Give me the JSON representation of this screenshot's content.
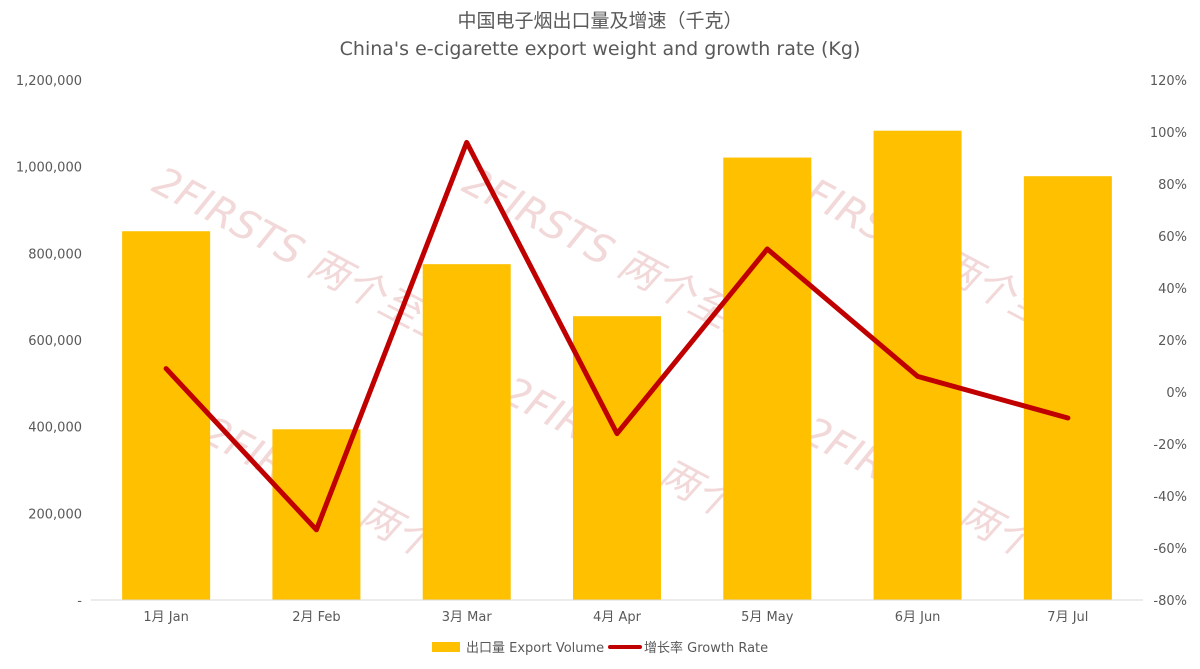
{
  "chart_data": {
    "type": "bar",
    "title": "中国电子烟出口量及增速（千克）",
    "subtitle": "China's e-cigarette export weight and growth rate (Kg)",
    "categories": [
      "1月 Jan",
      "2月 Feb",
      "3月 Mar",
      "4月 Apr",
      "5月 May",
      "6月 Jun",
      "7月 Jul"
    ],
    "series": [
      {
        "name": "出口量 Export Volume",
        "type": "bar",
        "axis": "left",
        "color": "#ffc000",
        "values": [
          851000,
          394000,
          775000,
          655000,
          1021000,
          1083000,
          978000
        ]
      },
      {
        "name": "增长率 Growth Rate",
        "type": "line",
        "axis": "right",
        "color": "#c00000",
        "values": [
          0.09,
          -0.53,
          0.96,
          -0.16,
          0.55,
          0.06,
          -0.1
        ]
      }
    ],
    "y_left": {
      "min": 0,
      "max": 1200000,
      "ticks": [
        "-",
        "200,000",
        "400,000",
        "600,000",
        "800,000",
        "1,000,000",
        "1,200,000"
      ]
    },
    "y_right": {
      "min": -0.8,
      "max": 1.2,
      "ticks": [
        "-80%",
        "-60%",
        "-40%",
        "-20%",
        "0%",
        "20%",
        "40%",
        "60%",
        "80%",
        "100%",
        "120%"
      ]
    },
    "legend_position": "bottom",
    "grid": false,
    "watermark": "2FIRSTS 两个至上"
  }
}
